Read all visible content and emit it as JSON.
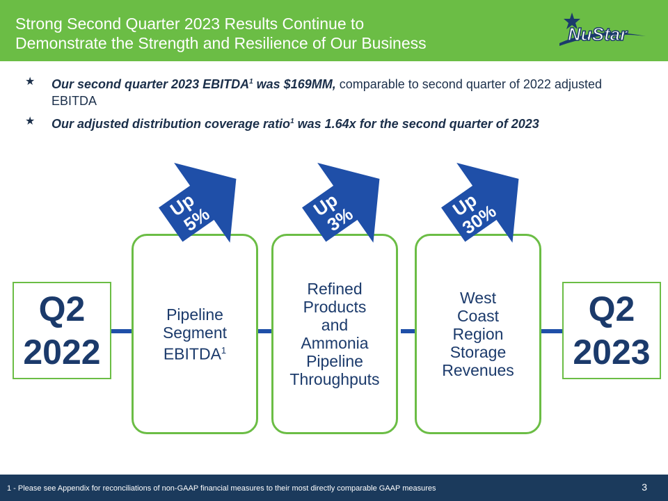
{
  "header": {
    "title_line1": "Strong Second Quarter 2023 Results Continue to",
    "title_line2": "Demonstrate the Strength and Resilience of Our Business",
    "logo_text": "NuStar"
  },
  "bullets": [
    {
      "emphasis": "Our second quarter 2023 EBITDA",
      "sup": "1",
      "emphasis_tail": " was $169MM,",
      "rest": " comparable to second quarter of 2022 adjusted  EBITDA"
    },
    {
      "emphasis": "Our adjusted distribution coverage ratio",
      "sup": "1",
      "emphasis_tail": " was 1.64x for the second quarter of 2023",
      "rest": ""
    }
  ],
  "left_box": {
    "line1": "Q2",
    "line2": "2022"
  },
  "right_box": {
    "line1": "Q2",
    "line2": "2023"
  },
  "cards": [
    {
      "label": "Pipeline\nSegment\nEBITDA",
      "sup": "1",
      "arrow_line1": "Up",
      "arrow_line2": "5%"
    },
    {
      "label": "Refined\nProducts\nand\nAmmonia\nPipeline\nThroughputs",
      "sup": "",
      "arrow_line1": "Up",
      "arrow_line2": "3%"
    },
    {
      "label": "West\nCoast\nRegion\nStorage\nRevenues",
      "sup": "",
      "arrow_line1": "Up",
      "arrow_line2": "30%"
    }
  ],
  "footer": {
    "footnote": "1 - Please see Appendix for reconciliations of non-GAAP financial measures to their most directly comparable GAAP measures",
    "page_number": "3"
  },
  "colors": {
    "green": "#6bbd45",
    "navy": "#1b3a6b",
    "arrow_blue": "#1f4fa8",
    "footer": "#1b3a5c"
  }
}
